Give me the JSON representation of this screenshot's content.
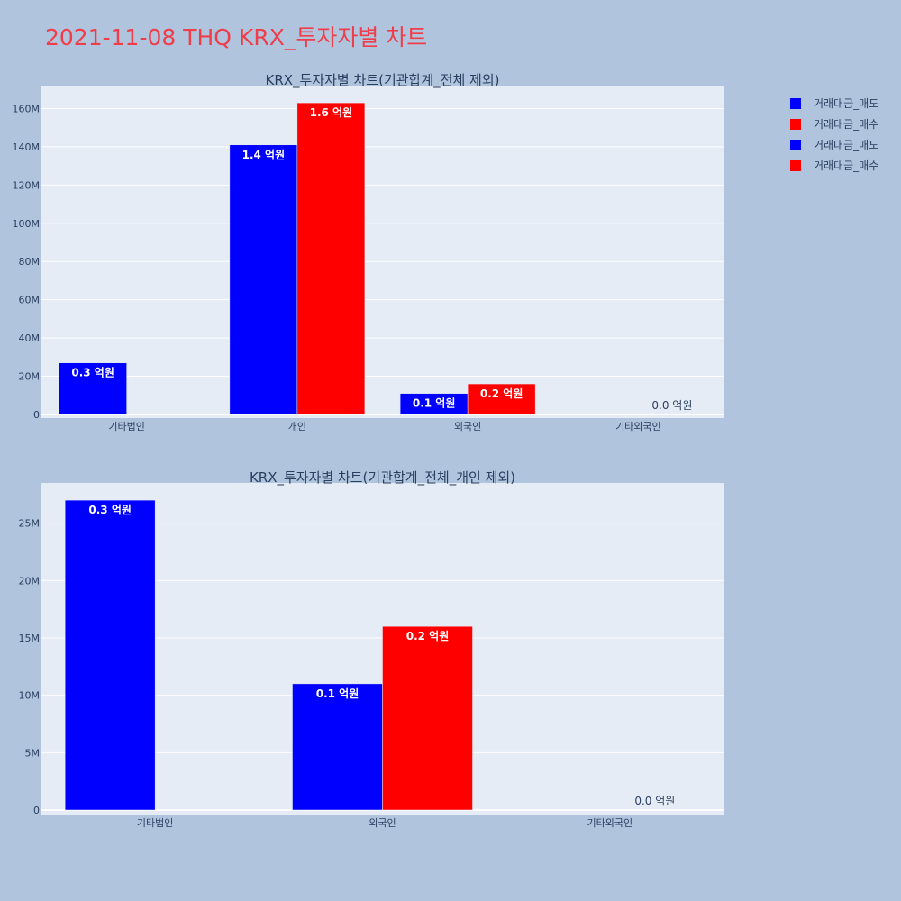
{
  "title": "2021-11-08 THQ KRX_투자자별 차트",
  "colors": {
    "sell": "#0000ff",
    "buy": "#ff0000",
    "title": "#ef3e4a"
  },
  "legend": [
    {
      "label": "거래대금_매도",
      "color": "#0000ff"
    },
    {
      "label": "거래대금_매수",
      "color": "#ff0000"
    },
    {
      "label": "거래대금_매도",
      "color": "#0000ff"
    },
    {
      "label": "거래대금_매수",
      "color": "#ff0000"
    }
  ],
  "chart_data": [
    {
      "type": "bar",
      "title": "KRX_투자자별 차트(기관합계_전체 제외)",
      "categories": [
        "기타법인",
        "개인",
        "외국인",
        "기타외국인"
      ],
      "series": [
        {
          "name": "거래대금_매도",
          "color": "#0000ff",
          "values": [
            27000000,
            141000000,
            11000000,
            0
          ],
          "labels": [
            "0.3 억원",
            "1.4 억원",
            "0.1 억원",
            ""
          ]
        },
        {
          "name": "거래대금_매수",
          "color": "#ff0000",
          "values": [
            0,
            163000000,
            16000000,
            0
          ],
          "labels": [
            "",
            "1.6 억원",
            "0.2 억원",
            "0.0 억원"
          ]
        }
      ],
      "yticks": [
        0,
        20000000,
        40000000,
        60000000,
        80000000,
        100000000,
        120000000,
        140000000,
        160000000
      ],
      "ytick_labels": [
        "0",
        "20M",
        "40M",
        "60M",
        "80M",
        "100M",
        "120M",
        "140M",
        "160M"
      ],
      "ylim": [
        0,
        172000000
      ]
    },
    {
      "type": "bar",
      "title": "KRX_투자자별 차트(기관합계_전체_개인 제외)",
      "categories": [
        "기타법인",
        "외국인",
        "기타외국인"
      ],
      "series": [
        {
          "name": "거래대금_매도",
          "color": "#0000ff",
          "values": [
            27000000,
            11000000,
            0
          ],
          "labels": [
            "0.3 억원",
            "0.1 억원",
            ""
          ]
        },
        {
          "name": "거래대금_매수",
          "color": "#ff0000",
          "values": [
            0,
            16000000,
            0
          ],
          "labels": [
            "",
            "0.2 억원",
            "0.0 억원"
          ]
        }
      ],
      "yticks": [
        0,
        5000000,
        10000000,
        15000000,
        20000000,
        25000000
      ],
      "ytick_labels": [
        "0",
        "5M",
        "10M",
        "15M",
        "20M",
        "25M"
      ],
      "ylim": [
        0,
        28500000
      ]
    }
  ]
}
